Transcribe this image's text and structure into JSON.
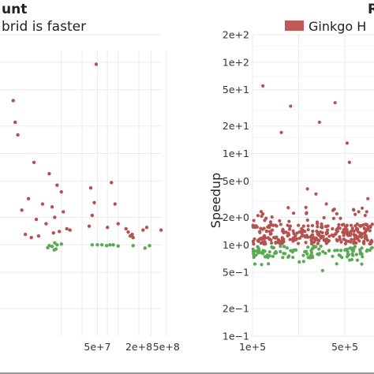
{
  "chart_data": [
    {
      "type": "scatter",
      "title": "unt",
      "subtitle": "brid is faster",
      "xlabel": "",
      "ylabel": "",
      "x_scale": "log",
      "x_ticks": [
        {
          "value": 50000000,
          "label": "5e+7"
        },
        {
          "value": 200000000,
          "label": "2e+8"
        },
        {
          "value": 500000000,
          "label": "5e+8"
        }
      ],
      "y_scale": "log",
      "grid": true,
      "series": [
        {
          "color": "#b5524f",
          "points": [
            [
              48000000,
              95
            ],
            [
              3000000,
              38
            ],
            [
              3200000,
              22
            ],
            [
              3500000,
              16
            ],
            [
              6000000,
              8
            ],
            [
              10000000,
              6
            ],
            [
              13000000,
              4.5
            ],
            [
              15000000,
              3.8
            ],
            [
              5000000,
              3.2
            ],
            [
              8000000,
              2.8
            ],
            [
              11000000,
              2.6
            ],
            [
              16000000,
              2.3
            ],
            [
              12000000,
              2.0
            ],
            [
              4000000,
              2.4
            ],
            [
              6500000,
              1.9
            ],
            [
              9000000,
              1.7
            ],
            [
              18000000,
              1.5
            ],
            [
              14000000,
              1.4
            ],
            [
              11500000,
              1.35
            ],
            [
              20000000,
              1.45
            ],
            [
              40000000,
              4.2
            ],
            [
              45000000,
              2.9
            ],
            [
              42000000,
              2.1
            ],
            [
              38000000,
              1.6
            ],
            [
              80000000,
              4.8
            ],
            [
              90000000,
              2.8
            ],
            [
              100000000,
              1.7
            ],
            [
              70000000,
              1.55
            ],
            [
              130000000,
              1.5
            ],
            [
              140000000,
              1.38
            ],
            [
              160000000,
              1.3
            ],
            [
              165000000,
              1.2
            ],
            [
              150000000,
              1.25
            ],
            [
              230000000,
              1.45
            ],
            [
              260000000,
              1.55
            ],
            [
              420000000,
              1.45
            ],
            [
              4500000,
              1.3
            ],
            [
              5500000,
              1.2
            ],
            [
              7000000,
              1.25
            ]
          ]
        },
        {
          "color": "#5aa955",
          "points": [
            [
              10000000,
              0.98
            ],
            [
              11000000,
              0.96
            ],
            [
              12000000,
              1.05
            ],
            [
              9500000,
              0.93
            ],
            [
              13000000,
              1.0
            ],
            [
              12500000,
              0.9
            ],
            [
              11800000,
              0.88
            ],
            [
              15000000,
              1.02
            ],
            [
              42000000,
              1.0
            ],
            [
              50000000,
              1.0
            ],
            [
              58000000,
              1.0
            ],
            [
              68000000,
              0.98
            ],
            [
              76000000,
              1.0
            ],
            [
              85000000,
              1.0
            ],
            [
              100000000,
              0.97
            ],
            [
              165000000,
              0.98
            ],
            [
              245000000,
              0.92
            ],
            [
              285000000,
              0.98
            ]
          ]
        }
      ]
    },
    {
      "type": "scatter",
      "title": "R",
      "xlabel": "",
      "ylabel": "Speedup",
      "x_scale": "linear",
      "xlim": [
        100000,
        800000
      ],
      "x_ticks": [
        {
          "value": 100000,
          "label": "1e+5"
        },
        {
          "value": 500000,
          "label": "5e+5"
        }
      ],
      "y_scale": "log",
      "ylim": [
        0.1,
        200
      ],
      "y_ticks": [
        {
          "value": 200,
          "label": "2e+2"
        },
        {
          "value": 100,
          "label": "1e+2"
        },
        {
          "value": 50,
          "label": "5e+1"
        },
        {
          "value": 20,
          "label": "2e+1"
        },
        {
          "value": 10,
          "label": "1e+1"
        },
        {
          "value": 5,
          "label": "5e+0"
        },
        {
          "value": 2,
          "label": "2e+0"
        },
        {
          "value": 1,
          "label": "1e+0"
        },
        {
          "value": 0.5,
          "label": "5e−1"
        },
        {
          "value": 0.2,
          "label": "2e−1"
        },
        {
          "value": 0.1,
          "label": "1e−1"
        }
      ],
      "legend": {
        "position": "top",
        "entries": [
          {
            "label": "Ginkgo H",
            "color": "#bf5a57"
          }
        ]
      },
      "grid": true,
      "red_color": "#b5524f",
      "green_color": "#5aa955",
      "red_outliers": [
        [
          145000,
          55
        ],
        [
          225000,
          17
        ],
        [
          265000,
          33
        ],
        [
          390000,
          22
        ],
        [
          458000,
          36
        ],
        [
          510000,
          13
        ],
        [
          520000,
          8
        ],
        [
          338000,
          4.1
        ],
        [
          375000,
          3.6
        ],
        [
          420000,
          2.8
        ],
        [
          600000,
          3.2
        ]
      ],
      "seed": 7
    }
  ]
}
